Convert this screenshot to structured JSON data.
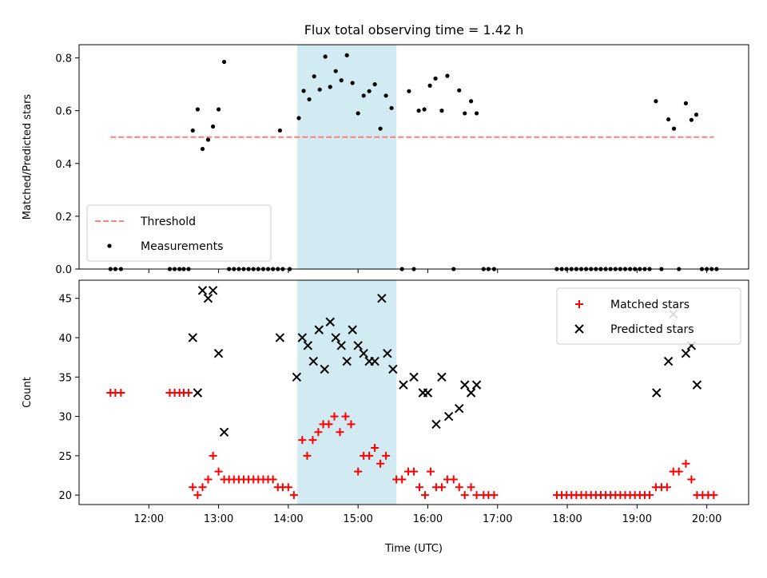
{
  "chart_data": {
    "title": "Flux total observing time = 1.42 h",
    "shared_x": {
      "xlabel": "Time (UTC)",
      "xlim": [
        11.0,
        20.6
      ],
      "ticks": [
        12,
        13,
        14,
        15,
        16,
        17,
        18,
        19,
        20
      ],
      "tick_labels": [
        "12:00",
        "13:00",
        "14:00",
        "15:00",
        "16:00",
        "17:00",
        "18:00",
        "19:00",
        "20:00"
      ],
      "highlight_span": [
        14.13,
        15.55
      ],
      "highlight_color": "#add8e6"
    },
    "panels": [
      {
        "type": "scatter",
        "ylabel": "Matched/Predicted stars",
        "ylim": [
          0,
          0.85
        ],
        "yticks": [
          0.0,
          0.2,
          0.4,
          0.6,
          0.8
        ],
        "ytick_labels": [
          "0.0",
          "0.2",
          "0.4",
          "0.6",
          "0.8"
        ],
        "legend_position": "lower-left",
        "threshold": {
          "name": "Threshold",
          "y": 0.5,
          "x_range": [
            11.45,
            20.1
          ],
          "color": "#ff7f7f"
        },
        "series": [
          {
            "name": "Measurements",
            "color": "#000000",
            "points": [
              [
                11.45,
                0
              ],
              [
                11.52,
                0
              ],
              [
                11.6,
                0
              ],
              [
                12.3,
                0
              ],
              [
                12.37,
                0
              ],
              [
                12.44,
                0
              ],
              [
                12.5,
                0
              ],
              [
                12.57,
                0
              ],
              [
                12.63,
                0.525
              ],
              [
                12.7,
                0.605
              ],
              [
                12.77,
                0.455
              ],
              [
                12.85,
                0.49
              ],
              [
                12.92,
                0.54
              ],
              [
                13.0,
                0.605
              ],
              [
                13.08,
                0.785
              ],
              [
                13.15,
                0
              ],
              [
                13.22,
                0
              ],
              [
                13.29,
                0
              ],
              [
                13.36,
                0
              ],
              [
                13.43,
                0
              ],
              [
                13.5,
                0
              ],
              [
                13.57,
                0
              ],
              [
                13.64,
                0
              ],
              [
                13.71,
                0
              ],
              [
                13.78,
                0
              ],
              [
                13.85,
                0
              ],
              [
                13.92,
                0
              ],
              [
                14.02,
                0
              ],
              [
                13.88,
                0.525
              ],
              [
                14.15,
                0.572
              ],
              [
                14.22,
                0.675
              ],
              [
                14.3,
                0.643
              ],
              [
                14.37,
                0.73
              ],
              [
                14.45,
                0.68
              ],
              [
                14.53,
                0.805
              ],
              [
                14.6,
                0.69
              ],
              [
                14.68,
                0.75
              ],
              [
                14.76,
                0.715
              ],
              [
                14.84,
                0.81
              ],
              [
                14.92,
                0.705
              ],
              [
                15.0,
                0.59
              ],
              [
                15.08,
                0.657
              ],
              [
                15.16,
                0.674
              ],
              [
                15.24,
                0.7
              ],
              [
                15.32,
                0.532
              ],
              [
                15.4,
                0.657
              ],
              [
                15.48,
                0.61
              ],
              [
                15.63,
                0
              ],
              [
                15.8,
                0
              ],
              [
                15.73,
                0.674
              ],
              [
                15.87,
                0.6
              ],
              [
                15.95,
                0.605
              ],
              [
                16.03,
                0.695
              ],
              [
                16.11,
                0.722
              ],
              [
                16.2,
                0.6
              ],
              [
                16.28,
                0.732
              ],
              [
                16.37,
                0
              ],
              [
                16.45,
                0.677
              ],
              [
                16.53,
                0.59
              ],
              [
                16.62,
                0.636
              ],
              [
                16.7,
                0.59
              ],
              [
                16.8,
                0
              ],
              [
                16.87,
                0
              ],
              [
                16.95,
                0
              ],
              [
                17.85,
                0
              ],
              [
                17.92,
                0
              ],
              [
                17.99,
                0
              ],
              [
                18.06,
                0
              ],
              [
                18.13,
                0
              ],
              [
                18.2,
                0
              ],
              [
                18.27,
                0
              ],
              [
                18.34,
                0
              ],
              [
                18.41,
                0
              ],
              [
                18.48,
                0
              ],
              [
                18.55,
                0
              ],
              [
                18.62,
                0
              ],
              [
                18.69,
                0
              ],
              [
                18.76,
                0
              ],
              [
                18.83,
                0
              ],
              [
                18.9,
                0
              ],
              [
                18.97,
                0
              ],
              [
                19.04,
                0
              ],
              [
                19.11,
                0
              ],
              [
                19.18,
                0
              ],
              [
                19.27,
                0.636
              ],
              [
                19.35,
                0
              ],
              [
                19.45,
                0.567
              ],
              [
                19.53,
                0.532
              ],
              [
                19.6,
                0
              ],
              [
                19.7,
                0.628
              ],
              [
                19.78,
                0.565
              ],
              [
                19.85,
                0.585
              ],
              [
                19.93,
                0
              ],
              [
                20.0,
                0
              ],
              [
                20.07,
                0
              ],
              [
                20.14,
                0
              ]
            ]
          }
        ]
      },
      {
        "type": "scatter",
        "ylabel": "Count",
        "ylim": [
          18.8,
          47.3
        ],
        "yticks": [
          20,
          25,
          30,
          35,
          40,
          45
        ],
        "ytick_labels": [
          "20",
          "25",
          "30",
          "35",
          "40",
          "45"
        ],
        "legend_position": "upper-right",
        "series": [
          {
            "name": "Matched stars",
            "color": "#ff0000",
            "marker": "plus",
            "points": [
              [
                11.45,
                33
              ],
              [
                11.52,
                33
              ],
              [
                11.6,
                33
              ],
              [
                12.3,
                33
              ],
              [
                12.37,
                33
              ],
              [
                12.44,
                33
              ],
              [
                12.5,
                33
              ],
              [
                12.57,
                33
              ],
              [
                12.63,
                21
              ],
              [
                12.7,
                20
              ],
              [
                12.77,
                21
              ],
              [
                12.85,
                22
              ],
              [
                12.92,
                25
              ],
              [
                13.0,
                23
              ],
              [
                13.08,
                22
              ],
              [
                13.15,
                22
              ],
              [
                13.22,
                22
              ],
              [
                13.29,
                22
              ],
              [
                13.36,
                22
              ],
              [
                13.43,
                22
              ],
              [
                13.5,
                22
              ],
              [
                13.57,
                22
              ],
              [
                13.64,
                22
              ],
              [
                13.71,
                22
              ],
              [
                13.78,
                22
              ],
              [
                13.85,
                21
              ],
              [
                13.92,
                21
              ],
              [
                14.0,
                21
              ],
              [
                14.08,
                20
              ],
              [
                14.2,
                27
              ],
              [
                14.27,
                25
              ],
              [
                14.35,
                27
              ],
              [
                14.43,
                28
              ],
              [
                14.5,
                29
              ],
              [
                14.58,
                29
              ],
              [
                14.66,
                30
              ],
              [
                14.74,
                28
              ],
              [
                14.82,
                30
              ],
              [
                14.9,
                29
              ],
              [
                15.0,
                23
              ],
              [
                15.08,
                25
              ],
              [
                15.16,
                25
              ],
              [
                15.24,
                26
              ],
              [
                15.32,
                24
              ],
              [
                15.4,
                25
              ],
              [
                15.55,
                22
              ],
              [
                15.63,
                22
              ],
              [
                15.72,
                23
              ],
              [
                15.8,
                23
              ],
              [
                15.88,
                21
              ],
              [
                15.96,
                20
              ],
              [
                16.04,
                23
              ],
              [
                16.12,
                21
              ],
              [
                16.2,
                21
              ],
              [
                16.28,
                22
              ],
              [
                16.37,
                22
              ],
              [
                16.45,
                21
              ],
              [
                16.53,
                20
              ],
              [
                16.62,
                21
              ],
              [
                16.7,
                20
              ],
              [
                16.8,
                20
              ],
              [
                16.87,
                20
              ],
              [
                16.95,
                20
              ],
              [
                17.85,
                20
              ],
              [
                17.92,
                20
              ],
              [
                17.99,
                20
              ],
              [
                18.06,
                20
              ],
              [
                18.13,
                20
              ],
              [
                18.2,
                20
              ],
              [
                18.27,
                20
              ],
              [
                18.34,
                20
              ],
              [
                18.41,
                20
              ],
              [
                18.48,
                20
              ],
              [
                18.55,
                20
              ],
              [
                18.62,
                20
              ],
              [
                18.69,
                20
              ],
              [
                18.76,
                20
              ],
              [
                18.83,
                20
              ],
              [
                18.9,
                20
              ],
              [
                18.97,
                20
              ],
              [
                19.04,
                20
              ],
              [
                19.11,
                20
              ],
              [
                19.18,
                20
              ],
              [
                19.27,
                21
              ],
              [
                19.35,
                21
              ],
              [
                19.43,
                21
              ],
              [
                19.52,
                23
              ],
              [
                19.6,
                23
              ],
              [
                19.7,
                24
              ],
              [
                19.78,
                22
              ],
              [
                19.86,
                20
              ],
              [
                19.94,
                20
              ],
              [
                20.02,
                20
              ],
              [
                20.1,
                20
              ]
            ]
          },
          {
            "name": "Predicted stars",
            "color": "#000000",
            "marker": "x",
            "points": [
              [
                12.63,
                40
              ],
              [
                12.7,
                33
              ],
              [
                12.77,
                46
              ],
              [
                12.85,
                45
              ],
              [
                12.92,
                46
              ],
              [
                13.0,
                38
              ],
              [
                13.08,
                28
              ],
              [
                13.88,
                40
              ],
              [
                14.12,
                35
              ],
              [
                14.2,
                40
              ],
              [
                14.28,
                39
              ],
              [
                14.36,
                37
              ],
              [
                14.44,
                41
              ],
              [
                14.52,
                36
              ],
              [
                14.6,
                42
              ],
              [
                14.68,
                40
              ],
              [
                14.76,
                39
              ],
              [
                14.84,
                37
              ],
              [
                14.92,
                41
              ],
              [
                15.0,
                39
              ],
              [
                15.08,
                38
              ],
              [
                15.16,
                37
              ],
              [
                15.24,
                37
              ],
              [
                15.34,
                45
              ],
              [
                15.42,
                38
              ],
              [
                15.5,
                36
              ],
              [
                15.65,
                34
              ],
              [
                15.8,
                35
              ],
              [
                15.93,
                33
              ],
              [
                16.0,
                33
              ],
              [
                16.12,
                29
              ],
              [
                16.2,
                35
              ],
              [
                16.3,
                30
              ],
              [
                16.45,
                31
              ],
              [
                16.53,
                34
              ],
              [
                16.62,
                33
              ],
              [
                16.7,
                34
              ],
              [
                19.28,
                33
              ],
              [
                19.45,
                37
              ],
              [
                19.52,
                43
              ],
              [
                19.7,
                38
              ],
              [
                19.78,
                39
              ],
              [
                19.86,
                34
              ]
            ]
          }
        ]
      }
    ]
  }
}
